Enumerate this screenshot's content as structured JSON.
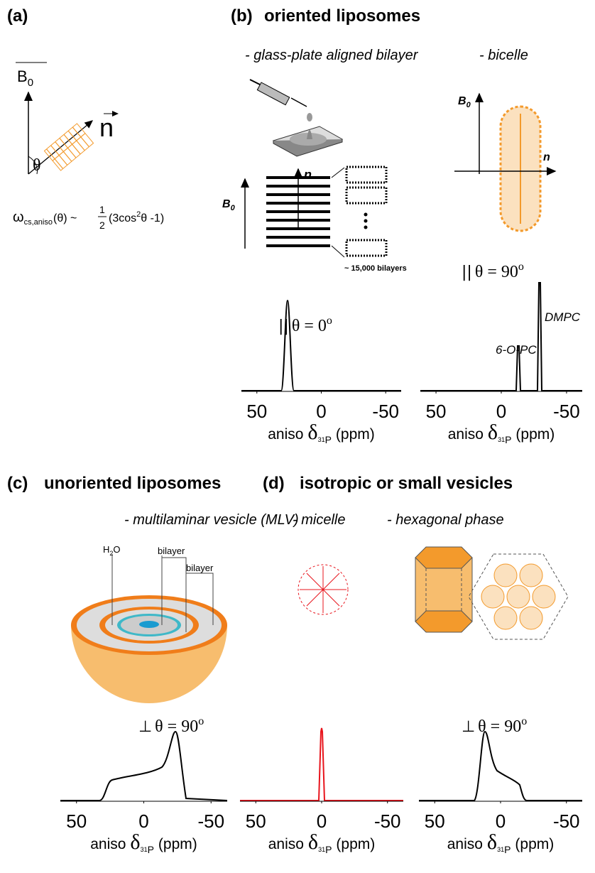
{
  "panel_a": {
    "label": "(a)",
    "b0": {
      "symbol": "B",
      "subscript": "0"
    },
    "normal": "n",
    "angle": "θ",
    "formula": {
      "omega": "ω",
      "subscript": "cs,aniso",
      "argument": "(θ) ~",
      "numerator": "1",
      "denominator": "2",
      "body": "(3cos",
      "exponent": "2",
      "tail": "θ -1)"
    }
  },
  "panel_b": {
    "label": "(b)",
    "title": "oriented liposomes",
    "glass": {
      "subtitle": "- glass-plate aligned bilayer",
      "b0": {
        "symbol": "B",
        "subscript": "0"
      },
      "normal": "n",
      "count": "~ 15,000 bilayers"
    },
    "bicelle": {
      "subtitle": "- bicelle",
      "b0": {
        "symbol": "B",
        "subscript": "0"
      },
      "normal": "n",
      "peaks": [
        "6-O-PC",
        "DMPC"
      ]
    }
  },
  "panel_c": {
    "label": "(c)",
    "title": "unoriented liposomes",
    "subtitle": "- multilaminar vesicle (MLV)",
    "water": {
      "symbol": "H",
      "subscript": "2",
      "tail": "O"
    },
    "layers": [
      "bilayer",
      "bilayer"
    ]
  },
  "panel_d": {
    "label": "(d)",
    "title": "isotropic or small vesicles",
    "subtitles": [
      "- micelle",
      "- hexagonal phase"
    ]
  },
  "spectra": [
    {
      "xlim": [
        62,
        -62
      ],
      "xticks": [
        50,
        0,
        -50
      ],
      "color": "#000000",
      "symbol": "||",
      "angle": "θ = 0",
      "degree": "o",
      "axis_label": {
        "prefix": "aniso",
        "delta": "δ",
        "isotope": "31",
        "nucleus": "P",
        "unit": "(ppm)"
      }
    },
    {
      "xlim": [
        62,
        -62
      ],
      "xticks": [
        50,
        0,
        -50
      ],
      "color": "#000000",
      "symbol": "||",
      "angle": "θ = 90",
      "degree": "o",
      "axis_label": {
        "prefix": "aniso",
        "delta": "δ",
        "isotope": "31",
        "nucleus": "P",
        "unit": "(ppm)"
      }
    },
    {
      "xlim": [
        62,
        -62
      ],
      "xticks": [
        50,
        0,
        -50
      ],
      "color": "#000000",
      "symbol": "⊥",
      "angle": "θ = 90",
      "degree": "o",
      "axis_label": {
        "prefix": "aniso",
        "delta": "δ",
        "isotope": "31",
        "nucleus": "P",
        "unit": "(ppm)"
      }
    },
    {
      "xlim": [
        62,
        -62
      ],
      "xticks": [
        50,
        0,
        -50
      ],
      "color": "#e8141c",
      "axis_label": {
        "prefix": "aniso",
        "delta": "δ",
        "isotope": "31",
        "nucleus": "P",
        "unit": "(ppm)"
      }
    },
    {
      "xlim": [
        62,
        -62
      ],
      "xticks": [
        50,
        0,
        -50
      ],
      "color": "#000000",
      "symbol": "⊥",
      "angle": "θ = 90",
      "degree": "o",
      "axis_label": {
        "prefix": "aniso",
        "delta": "δ",
        "isotope": "31",
        "nucleus": "P",
        "unit": "(ppm)"
      }
    }
  ]
}
